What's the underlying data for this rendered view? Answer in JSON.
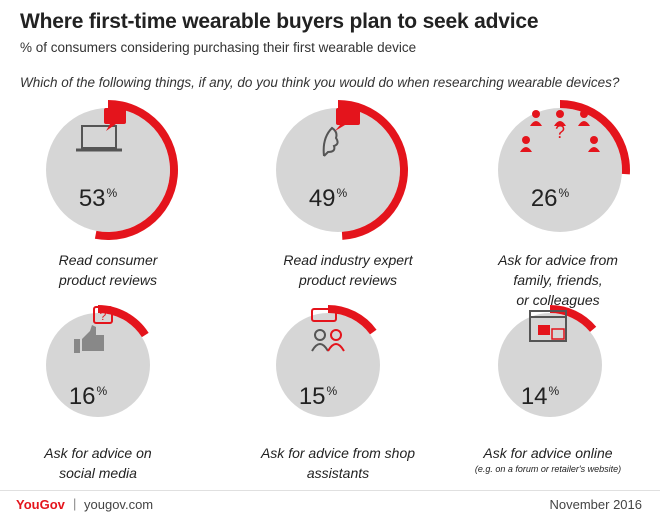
{
  "header": {
    "title": "Where first-time wearable buyers plan to seek advice",
    "subtitle": "% of consumers considering purchasing their first wearable device",
    "question": "Which of the following things, if any, do you think you would do when researching wearable devices?"
  },
  "footer": {
    "brand": "YouGov",
    "separator": "|",
    "site": "yougov.com",
    "date": "November 2016"
  },
  "colors": {
    "accent": "#e4141c",
    "circle": "#d6d6d6",
    "icon": "#555555"
  },
  "chart_data": {
    "type": "pie",
    "unit": "%",
    "items": [
      {
        "label": "Read consumer product reviews",
        "value": 53,
        "icon": "laptop-review-icon"
      },
      {
        "label": "Read industry expert product reviews",
        "value": 49,
        "icon": "expert-review-icon"
      },
      {
        "label": "Ask for advice from family, friends, or colleagues",
        "value": 26,
        "icon": "people-network-icon"
      },
      {
        "label": "Ask for advice on social media",
        "value": 16,
        "icon": "thumbs-up-icon"
      },
      {
        "label": "Ask for advice from shop assistants",
        "value": 15,
        "icon": "shop-assistants-icon"
      },
      {
        "label": "Ask for advice online",
        "sublabel": "(e.g. on a forum or retailer's website)",
        "value": 14,
        "icon": "web-forum-icon"
      }
    ]
  },
  "tiles": [
    {
      "pct": "53",
      "unit": "%",
      "label_l1": "Read consumer",
      "label_l2": "product reviews"
    },
    {
      "pct": "49",
      "unit": "%",
      "label_l1": "Read industry expert",
      "label_l2": "product reviews"
    },
    {
      "pct": "26",
      "unit": "%",
      "label_l1": "Ask for advice from",
      "label_l2": "family, friends,",
      "label_l3": "or colleagues"
    },
    {
      "pct": "16",
      "unit": "%",
      "label_l1": "Ask for advice on",
      "label_l2": "social media"
    },
    {
      "pct": "15",
      "unit": "%",
      "label_l1": "Ask for advice from shop",
      "label_l2": "assistants"
    },
    {
      "pct": "14",
      "unit": "%",
      "label_l1": "Ask for advice online",
      "sublabel": "(e.g. on a forum or retailer's website)"
    }
  ]
}
